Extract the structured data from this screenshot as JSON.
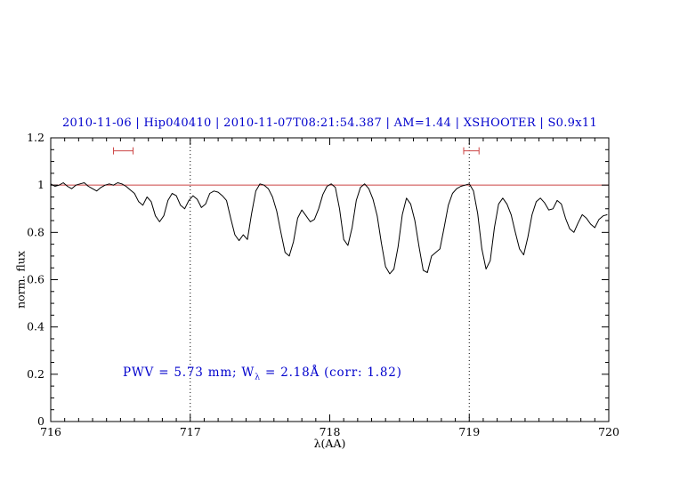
{
  "colors": {
    "title_blue": "#0000cd",
    "annotation_blue": "#0000cd",
    "reference_red": "#cc4444",
    "marker_red": "#cc4444",
    "spectrum_black": "#000000",
    "axis_black": "#000000",
    "background": "#ffffff"
  },
  "annotation": {
    "prefix": "PWV = 5.73 mm; W",
    "subscript": "λ",
    "suffix": " = 2.18Å (corr: 1.82)"
  },
  "chart_data": {
    "type": "line",
    "title": "2010-11-06 | Hip040410 | 2010-11-07T08:21:54.387 | AM=1.44 | XSHOOTER | S0.9x11",
    "xlabel": "λ(AA)",
    "ylabel": "norm. flux",
    "xlim": [
      716,
      720
    ],
    "ylim": [
      0,
      1.2
    ],
    "grid": false,
    "legend": "none",
    "x_ticks": [
      716,
      717,
      718,
      719,
      720
    ],
    "x_tick_labels": [
      "716",
      "717",
      "718",
      "719",
      "720"
    ],
    "x_minor_step": 0.1,
    "y_ticks": [
      0,
      0.2,
      0.4,
      0.6,
      0.8,
      1,
      1.2
    ],
    "y_tick_labels": [
      "0",
      "0.2",
      "0.4",
      "0.6",
      "0.8",
      "1",
      "1.2"
    ],
    "y_minor_step": 0.05,
    "reference_line": {
      "y": 1.0
    },
    "vlines": [
      {
        "x": 717,
        "style": "dotted"
      },
      {
        "x": 719,
        "style": "dotted"
      }
    ],
    "band_markers": [
      {
        "x_min": 716.45,
        "x_max": 716.59,
        "y": 1.145
      },
      {
        "x_min": 718.96,
        "x_max": 719.07,
        "y": 1.145
      }
    ],
    "annotation": {
      "text": "PWV = 5.73 mm; Wλ = 2.18Å (corr: 1.82)",
      "x": 716.52,
      "y": 0.21
    },
    "series": [
      {
        "name": "telluric spectrum",
        "color": "#000000",
        "x_start": 716.0,
        "x_step": 0.03,
        "y": [
          1.005,
          0.995,
          1.0,
          1.01,
          0.995,
          0.985,
          1.0,
          1.005,
          1.01,
          0.995,
          0.985,
          0.975,
          0.99,
          1.0,
          1.005,
          1.0,
          1.01,
          1.005,
          0.995,
          0.98,
          0.965,
          0.93,
          0.915,
          0.95,
          0.93,
          0.87,
          0.845,
          0.87,
          0.935,
          0.965,
          0.955,
          0.915,
          0.9,
          0.935,
          0.955,
          0.94,
          0.905,
          0.92,
          0.965,
          0.975,
          0.97,
          0.955,
          0.935,
          0.86,
          0.79,
          0.765,
          0.79,
          0.77,
          0.88,
          0.975,
          1.005,
          1.0,
          0.985,
          0.95,
          0.89,
          0.8,
          0.715,
          0.7,
          0.76,
          0.86,
          0.895,
          0.87,
          0.845,
          0.855,
          0.9,
          0.96,
          0.995,
          1.005,
          0.99,
          0.9,
          0.77,
          0.745,
          0.82,
          0.935,
          0.99,
          1.005,
          0.985,
          0.94,
          0.87,
          0.755,
          0.655,
          0.625,
          0.645,
          0.74,
          0.875,
          0.945,
          0.92,
          0.85,
          0.74,
          0.64,
          0.63,
          0.7,
          0.715,
          0.73,
          0.82,
          0.915,
          0.965,
          0.985,
          0.995,
          1.0,
          1.005,
          0.975,
          0.88,
          0.73,
          0.645,
          0.68,
          0.82,
          0.92,
          0.945,
          0.92,
          0.875,
          0.8,
          0.73,
          0.705,
          0.78,
          0.875,
          0.93,
          0.945,
          0.925,
          0.895,
          0.9,
          0.935,
          0.92,
          0.86,
          0.815,
          0.8,
          0.84,
          0.875,
          0.86,
          0.835,
          0.82,
          0.855,
          0.87,
          0.875
        ]
      }
    ]
  }
}
